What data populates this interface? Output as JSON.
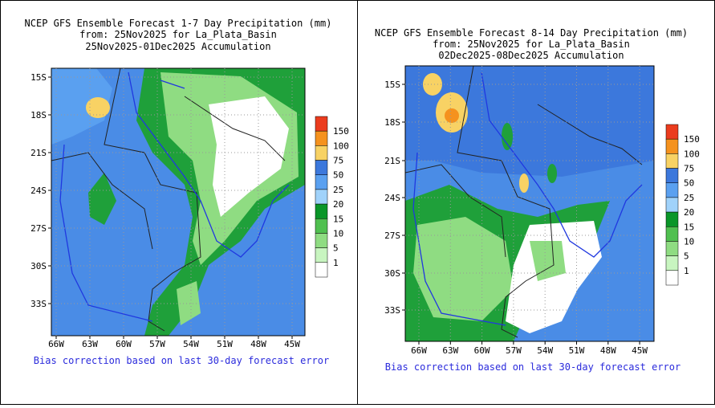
{
  "panels": [
    {
      "title": [
        "NCEP GFS Ensemble Forecast 1-7 Day Precipitation (mm)",
        "from: 25Nov2025   for La_Plata_Basin",
        "25Nov2025-01Dec2025 Accumulation"
      ],
      "lat_labels": [
        "15S",
        "18S",
        "21S",
        "24S",
        "27S",
        "30S",
        "33S"
      ],
      "lon_labels": [
        "66W",
        "63W",
        "60W",
        "57W",
        "54W",
        "51W",
        "48W",
        "45W"
      ],
      "colorbar_labels": [
        "150",
        "100",
        "75",
        "50",
        "25",
        "20",
        "15",
        "10",
        "5",
        "1"
      ],
      "footer": "Bias correction based on last 30-day forecast error"
    },
    {
      "title": [
        "NCEP GFS Ensemble Forecast 8-14 Day Precipitation (mm)",
        "from: 25Nov2025   for La_Plata_Basin",
        "02Dec2025-08Dec2025 Accumulation"
      ],
      "lat_labels": [
        "15S",
        "18S",
        "21S",
        "24S",
        "27S",
        "30S",
        "33S"
      ],
      "lon_labels": [
        "66W",
        "63W",
        "60W",
        "57W",
        "54W",
        "51W",
        "48W",
        "45W"
      ],
      "colorbar_labels": [
        "150",
        "100",
        "75",
        "50",
        "25",
        "20",
        "15",
        "10",
        "5",
        "1"
      ],
      "footer": "Bias correction based on last 30-day forecast error"
    }
  ]
}
